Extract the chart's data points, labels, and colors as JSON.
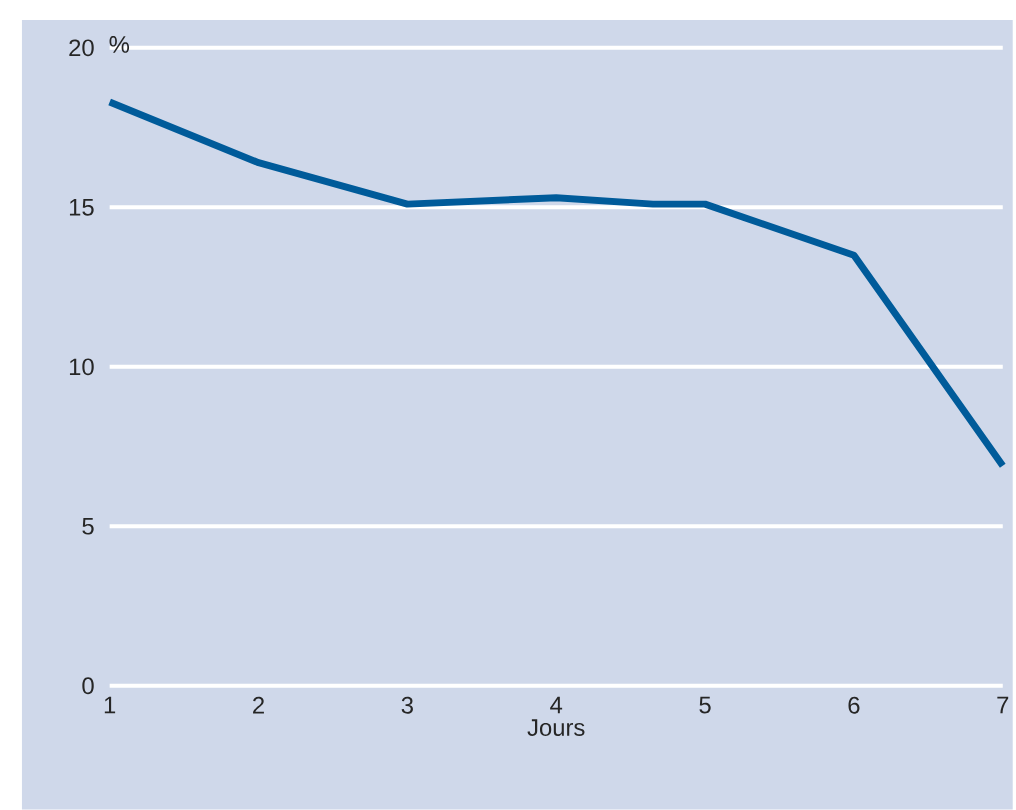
{
  "chart_data": {
    "type": "line",
    "xlabel": "Jours",
    "ylabel": "%",
    "x": [
      1,
      2,
      3,
      4,
      4.65,
      5,
      6,
      7
    ],
    "values": [
      18.3,
      16.4,
      15.1,
      15.3,
      15.1,
      15.1,
      13.5,
      6.9
    ],
    "color": "#005b9a",
    "xlim": [
      1,
      7
    ],
    "ylim": [
      0,
      20
    ],
    "xticks": [
      1,
      2,
      3,
      4,
      5,
      6,
      7
    ],
    "yticks": [
      0,
      5,
      10,
      15,
      20
    ],
    "grid": "y"
  }
}
